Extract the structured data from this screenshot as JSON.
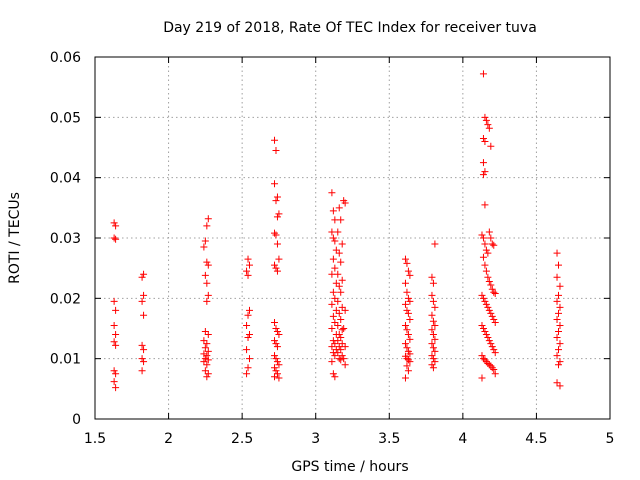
{
  "chart_data": {
    "type": "scatter",
    "title": "Day 219 of 2018, Rate Of TEC Index for receiver tuva",
    "xlabel": "GPS time / hours",
    "ylabel": "ROTI / TECUs",
    "xlim": [
      1.5,
      5
    ],
    "ylim": [
      0,
      0.06
    ],
    "grid": true,
    "colors": {
      "points": "#ff0000",
      "grid": "#a0a0a0",
      "axes": "#000000"
    },
    "x_ticks": [
      "1.5",
      "2",
      "2.5",
      "3",
      "3.5",
      "4",
      "4.5",
      "5"
    ],
    "x_tick_values": [
      1.5,
      2,
      2.5,
      3,
      3.5,
      4,
      4.5,
      5
    ],
    "y_ticks": [
      "0",
      "0.01",
      "0.02",
      "0.03",
      "0.04",
      "0.05",
      "0.06"
    ],
    "y_tick_values": [
      0,
      0.01,
      0.02,
      0.03,
      0.04,
      0.05,
      0.06
    ],
    "series": [
      {
        "name": "ROTI",
        "points": [
          [
            1.63,
            0.0325
          ],
          [
            1.64,
            0.032
          ],
          [
            1.63,
            0.03
          ],
          [
            1.64,
            0.0298
          ],
          [
            1.63,
            0.0195
          ],
          [
            1.64,
            0.018
          ],
          [
            1.63,
            0.0155
          ],
          [
            1.64,
            0.014
          ],
          [
            1.63,
            0.0128
          ],
          [
            1.64,
            0.0122
          ],
          [
            1.63,
            0.008
          ],
          [
            1.64,
            0.0075
          ],
          [
            1.63,
            0.0062
          ],
          [
            1.64,
            0.0052
          ],
          [
            1.83,
            0.024
          ],
          [
            1.82,
            0.0235
          ],
          [
            1.83,
            0.0205
          ],
          [
            1.82,
            0.0195
          ],
          [
            1.83,
            0.0172
          ],
          [
            1.82,
            0.0122
          ],
          [
            1.83,
            0.0115
          ],
          [
            1.82,
            0.01
          ],
          [
            1.83,
            0.0095
          ],
          [
            1.82,
            0.008
          ],
          [
            2.27,
            0.0332
          ],
          [
            2.26,
            0.032
          ],
          [
            2.25,
            0.0295
          ],
          [
            2.24,
            0.0285
          ],
          [
            2.26,
            0.026
          ],
          [
            2.27,
            0.0255
          ],
          [
            2.25,
            0.0238
          ],
          [
            2.26,
            0.0225
          ],
          [
            2.27,
            0.0205
          ],
          [
            2.26,
            0.0195
          ],
          [
            2.25,
            0.0145
          ],
          [
            2.27,
            0.014
          ],
          [
            2.24,
            0.013
          ],
          [
            2.26,
            0.0125
          ],
          [
            2.25,
            0.0118
          ],
          [
            2.27,
            0.0112
          ],
          [
            2.24,
            0.0108
          ],
          [
            2.26,
            0.0105
          ],
          [
            2.25,
            0.01
          ],
          [
            2.27,
            0.0098
          ],
          [
            2.24,
            0.0095
          ],
          [
            2.26,
            0.009
          ],
          [
            2.25,
            0.008
          ],
          [
            2.27,
            0.0075
          ],
          [
            2.26,
            0.007
          ],
          [
            2.54,
            0.0265
          ],
          [
            2.55,
            0.0255
          ],
          [
            2.53,
            0.0245
          ],
          [
            2.54,
            0.0238
          ],
          [
            2.55,
            0.018
          ],
          [
            2.54,
            0.0172
          ],
          [
            2.53,
            0.0155
          ],
          [
            2.55,
            0.014
          ],
          [
            2.54,
            0.0135
          ],
          [
            2.53,
            0.0115
          ],
          [
            2.55,
            0.01
          ],
          [
            2.54,
            0.0085
          ],
          [
            2.53,
            0.0075
          ],
          [
            2.72,
            0.0462
          ],
          [
            2.73,
            0.0445
          ],
          [
            2.72,
            0.039
          ],
          [
            2.74,
            0.0368
          ],
          [
            2.73,
            0.0362
          ],
          [
            2.75,
            0.034
          ],
          [
            2.74,
            0.0335
          ],
          [
            2.72,
            0.0308
          ],
          [
            2.73,
            0.0305
          ],
          [
            2.74,
            0.029
          ],
          [
            2.75,
            0.0265
          ],
          [
            2.72,
            0.0255
          ],
          [
            2.73,
            0.025
          ],
          [
            2.74,
            0.0245
          ],
          [
            2.72,
            0.016
          ],
          [
            2.73,
            0.015
          ],
          [
            2.74,
            0.0145
          ],
          [
            2.75,
            0.014
          ],
          [
            2.72,
            0.013
          ],
          [
            2.73,
            0.0125
          ],
          [
            2.74,
            0.012
          ],
          [
            2.72,
            0.0105
          ],
          [
            2.73,
            0.01
          ],
          [
            2.74,
            0.0095
          ],
          [
            2.75,
            0.009
          ],
          [
            2.72,
            0.0085
          ],
          [
            2.73,
            0.008
          ],
          [
            2.74,
            0.0075
          ],
          [
            2.72,
            0.007
          ],
          [
            2.75,
            0.0068
          ],
          [
            3.11,
            0.0375
          ],
          [
            3.12,
            0.0345
          ],
          [
            3.13,
            0.033
          ],
          [
            3.11,
            0.031
          ],
          [
            3.12,
            0.03
          ],
          [
            3.13,
            0.0295
          ],
          [
            3.14,
            0.028
          ],
          [
            3.12,
            0.0265
          ],
          [
            3.13,
            0.025
          ],
          [
            3.11,
            0.024
          ],
          [
            3.14,
            0.0225
          ],
          [
            3.12,
            0.021
          ],
          [
            3.13,
            0.02
          ],
          [
            3.11,
            0.019
          ],
          [
            3.14,
            0.018
          ],
          [
            3.12,
            0.017
          ],
          [
            3.13,
            0.016
          ],
          [
            3.11,
            0.015
          ],
          [
            3.14,
            0.014
          ],
          [
            3.12,
            0.013
          ],
          [
            3.13,
            0.0125
          ],
          [
            3.11,
            0.012
          ],
          [
            3.14,
            0.0115
          ],
          [
            3.12,
            0.011
          ],
          [
            3.13,
            0.0105
          ],
          [
            3.11,
            0.0095
          ],
          [
            3.12,
            0.0075
          ],
          [
            3.13,
            0.007
          ],
          [
            3.16,
            0.035
          ],
          [
            3.17,
            0.033
          ],
          [
            3.15,
            0.031
          ],
          [
            3.18,
            0.029
          ],
          [
            3.16,
            0.0275
          ],
          [
            3.17,
            0.026
          ],
          [
            3.15,
            0.024
          ],
          [
            3.18,
            0.023
          ],
          [
            3.16,
            0.022
          ],
          [
            3.17,
            0.021
          ],
          [
            3.15,
            0.0195
          ],
          [
            3.18,
            0.0185
          ],
          [
            3.16,
            0.0175
          ],
          [
            3.17,
            0.0165
          ],
          [
            3.15,
            0.0155
          ],
          [
            3.18,
            0.0148
          ],
          [
            3.16,
            0.014
          ],
          [
            3.17,
            0.0135
          ],
          [
            3.15,
            0.013
          ],
          [
            3.18,
            0.0125
          ],
          [
            3.16,
            0.012
          ],
          [
            3.17,
            0.0115
          ],
          [
            3.15,
            0.011
          ],
          [
            3.18,
            0.0105
          ],
          [
            3.16,
            0.01
          ],
          [
            3.17,
            0.0098
          ],
          [
            3.19,
            0.0362
          ],
          [
            3.2,
            0.0358
          ],
          [
            3.2,
            0.018
          ],
          [
            3.19,
            0.015
          ],
          [
            3.2,
            0.012
          ],
          [
            3.19,
            0.01
          ],
          [
            3.2,
            0.009
          ],
          [
            3.61,
            0.0265
          ],
          [
            3.62,
            0.0258
          ],
          [
            3.63,
            0.0245
          ],
          [
            3.64,
            0.0238
          ],
          [
            3.61,
            0.0225
          ],
          [
            3.62,
            0.021
          ],
          [
            3.63,
            0.02
          ],
          [
            3.64,
            0.0195
          ],
          [
            3.61,
            0.019
          ],
          [
            3.62,
            0.018
          ],
          [
            3.63,
            0.0175
          ],
          [
            3.64,
            0.0165
          ],
          [
            3.61,
            0.0155
          ],
          [
            3.62,
            0.0148
          ],
          [
            3.63,
            0.014
          ],
          [
            3.64,
            0.0132
          ],
          [
            3.61,
            0.0125
          ],
          [
            3.62,
            0.0118
          ],
          [
            3.63,
            0.0112
          ],
          [
            3.64,
            0.0108
          ],
          [
            3.61,
            0.0104
          ],
          [
            3.62,
            0.01
          ],
          [
            3.63,
            0.0098
          ],
          [
            3.64,
            0.0095
          ],
          [
            3.62,
            0.0088
          ],
          [
            3.63,
            0.008
          ],
          [
            3.61,
            0.0068
          ],
          [
            3.79,
            0.0235
          ],
          [
            3.8,
            0.0225
          ],
          [
            3.81,
            0.029
          ],
          [
            3.79,
            0.0205
          ],
          [
            3.8,
            0.0195
          ],
          [
            3.81,
            0.0185
          ],
          [
            3.79,
            0.0172
          ],
          [
            3.8,
            0.0162
          ],
          [
            3.81,
            0.0155
          ],
          [
            3.79,
            0.0148
          ],
          [
            3.8,
            0.014
          ],
          [
            3.81,
            0.0132
          ],
          [
            3.79,
            0.0125
          ],
          [
            3.8,
            0.0118
          ],
          [
            3.81,
            0.0112
          ],
          [
            3.79,
            0.0105
          ],
          [
            3.8,
            0.01
          ],
          [
            3.81,
            0.0095
          ],
          [
            3.79,
            0.009
          ],
          [
            3.8,
            0.0085
          ],
          [
            4.14,
            0.0572
          ],
          [
            4.15,
            0.05
          ],
          [
            4.16,
            0.0495
          ],
          [
            4.17,
            0.0488
          ],
          [
            4.18,
            0.0482
          ],
          [
            4.14,
            0.0465
          ],
          [
            4.15,
            0.046
          ],
          [
            4.19,
            0.0452
          ],
          [
            4.14,
            0.0425
          ],
          [
            4.15,
            0.041
          ],
          [
            4.14,
            0.0405
          ],
          [
            4.15,
            0.0355
          ],
          [
            4.13,
            0.0305
          ],
          [
            4.14,
            0.03
          ],
          [
            4.15,
            0.029
          ],
          [
            4.16,
            0.028
          ],
          [
            4.17,
            0.0275
          ],
          [
            4.18,
            0.031
          ],
          [
            4.19,
            0.03
          ],
          [
            4.2,
            0.029
          ],
          [
            4.21,
            0.0288
          ],
          [
            4.14,
            0.0268
          ],
          [
            4.15,
            0.0255
          ],
          [
            4.16,
            0.0245
          ],
          [
            4.17,
            0.0235
          ],
          [
            4.18,
            0.0228
          ],
          [
            4.19,
            0.0222
          ],
          [
            4.2,
            0.0215
          ],
          [
            4.21,
            0.021
          ],
          [
            4.22,
            0.0208
          ],
          [
            4.13,
            0.0205
          ],
          [
            4.14,
            0.02
          ],
          [
            4.15,
            0.0195
          ],
          [
            4.16,
            0.019
          ],
          [
            4.17,
            0.0185
          ],
          [
            4.18,
            0.018
          ],
          [
            4.19,
            0.0175
          ],
          [
            4.2,
            0.017
          ],
          [
            4.21,
            0.0165
          ],
          [
            4.22,
            0.016
          ],
          [
            4.13,
            0.0155
          ],
          [
            4.14,
            0.015
          ],
          [
            4.15,
            0.0145
          ],
          [
            4.16,
            0.014
          ],
          [
            4.17,
            0.0135
          ],
          [
            4.18,
            0.013
          ],
          [
            4.19,
            0.0125
          ],
          [
            4.2,
            0.012
          ],
          [
            4.21,
            0.0115
          ],
          [
            4.22,
            0.011
          ],
          [
            4.13,
            0.0105
          ],
          [
            4.14,
            0.01
          ],
          [
            4.15,
            0.0098
          ],
          [
            4.16,
            0.0095
          ],
          [
            4.17,
            0.0092
          ],
          [
            4.18,
            0.009
          ],
          [
            4.19,
            0.0088
          ],
          [
            4.2,
            0.0085
          ],
          [
            4.21,
            0.0082
          ],
          [
            4.22,
            0.0075
          ],
          [
            4.13,
            0.0068
          ],
          [
            4.64,
            0.0275
          ],
          [
            4.65,
            0.0255
          ],
          [
            4.64,
            0.0235
          ],
          [
            4.66,
            0.022
          ],
          [
            4.65,
            0.0205
          ],
          [
            4.64,
            0.0195
          ],
          [
            4.66,
            0.0185
          ],
          [
            4.65,
            0.0175
          ],
          [
            4.64,
            0.0165
          ],
          [
            4.66,
            0.0155
          ],
          [
            4.65,
            0.0145
          ],
          [
            4.64,
            0.0135
          ],
          [
            4.66,
            0.0125
          ],
          [
            4.65,
            0.0115
          ],
          [
            4.64,
            0.0105
          ],
          [
            4.66,
            0.0095
          ],
          [
            4.65,
            0.009
          ],
          [
            4.64,
            0.006
          ],
          [
            4.66,
            0.0055
          ]
        ]
      }
    ]
  }
}
